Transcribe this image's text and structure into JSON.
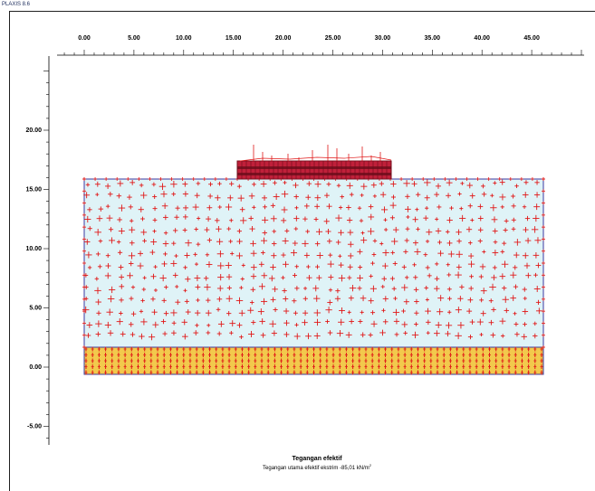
{
  "window": {
    "title": "PLAXIS 8.6"
  },
  "x_axis": {
    "ticks": [
      "0.00",
      "5.00",
      "10.00",
      "15.00",
      "20.00",
      "25.00",
      "30.00",
      "35.00",
      "40.00",
      "45.00"
    ]
  },
  "y_axis": {
    "ticks": [
      "20.00",
      "15.00",
      "10.00",
      "5.00",
      "0.00",
      "-5.00"
    ]
  },
  "caption": {
    "title": "Tegangan efektif",
    "subtitle": "Tegangan utama efektif ekstrim -85,01 kN/m",
    "unit_sup": "2"
  },
  "colors": {
    "soil_fill": "#dff3f7",
    "stress_marker": "#e01818",
    "boundary": "#3a3aa0",
    "dense_band": "#f2c94c",
    "foundation": "#a01030"
  }
}
